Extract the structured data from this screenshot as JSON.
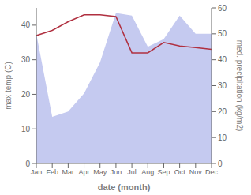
{
  "chart_data": {
    "type": "line",
    "categories": [
      "Jan",
      "Feb",
      "Mar",
      "Apr",
      "May",
      "Jun",
      "Jul",
      "Aug",
      "Sep",
      "Oct",
      "Nov",
      "Dec"
    ],
    "series": [
      {
        "type": "area",
        "color": "#c5caf0",
        "values": [
          50,
          18,
          20,
          27,
          39,
          58,
          57,
          45,
          48,
          57,
          50,
          50
        ],
        "axis": "y2"
      },
      {
        "type": "line",
        "color": "#b03040",
        "values": [
          37,
          38.5,
          41,
          43,
          43,
          42.5,
          32,
          32,
          35,
          34,
          33.5,
          33
        ]
      }
    ],
    "xlabel": "date (month)",
    "ylabel": "max temp (C)",
    "y2label": "med. precipitation (kg/m2)",
    "ylim": [
      0,
      45
    ],
    "yticks": [
      0,
      10,
      20,
      30,
      40
    ],
    "y2lim": [
      0,
      60
    ],
    "y2ticks": [
      0,
      10,
      20,
      30,
      40,
      50,
      60
    ],
    "grid": false
  }
}
